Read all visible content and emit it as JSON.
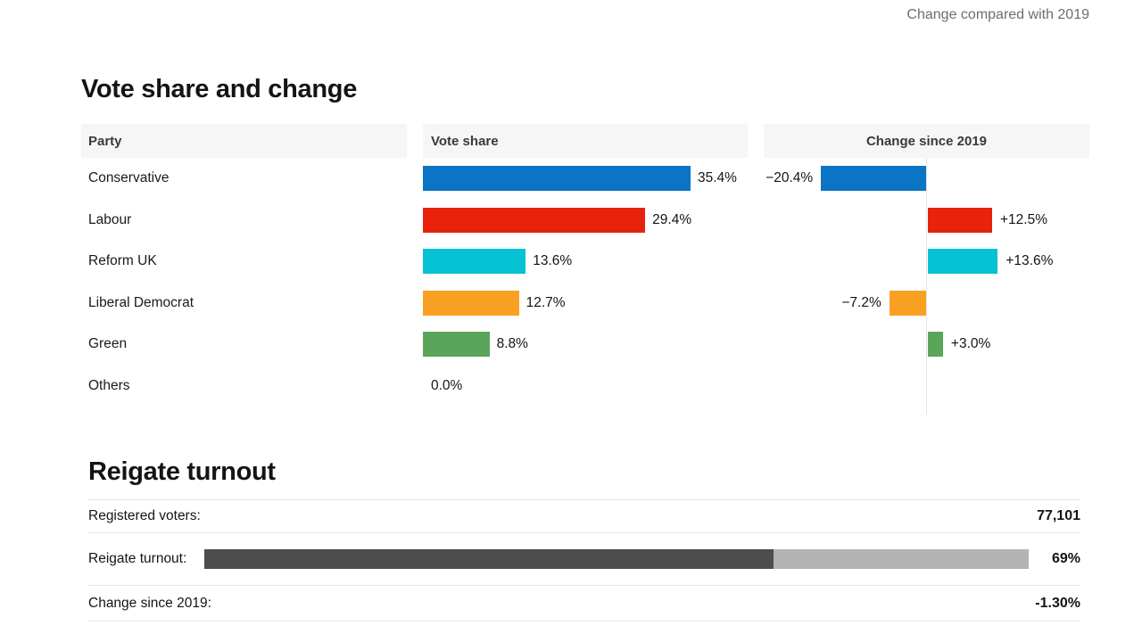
{
  "header": {
    "change_note": "Change compared with 2019"
  },
  "vote_share_section": {
    "title": "Vote share and change",
    "columns": {
      "party": "Party",
      "vote_share": "Vote share",
      "change": "Change since 2019"
    },
    "rows": [
      {
        "party": "Conservative",
        "vote_share": 35.4,
        "vote_share_label": "35.4%",
        "change": -20.4,
        "change_label": "−20.4%",
        "color": "#0b74c4"
      },
      {
        "party": "Labour",
        "vote_share": 29.4,
        "vote_share_label": "29.4%",
        "change": 12.5,
        "change_label": "+12.5%",
        "color": "#e8230d"
      },
      {
        "party": "Reform UK",
        "vote_share": 13.6,
        "vote_share_label": "13.6%",
        "change": 13.6,
        "change_label": "+13.6%",
        "color": "#06c2d4"
      },
      {
        "party": "Liberal Democrat",
        "vote_share": 12.7,
        "vote_share_label": "12.7%",
        "change": -7.2,
        "change_label": "−7.2%",
        "color": "#f9a023"
      },
      {
        "party": "Green",
        "vote_share": 8.8,
        "vote_share_label": "8.8%",
        "change": 3.0,
        "change_label": "+3.0%",
        "color": "#5ba55b"
      },
      {
        "party": "Others",
        "vote_share": 0.0,
        "vote_share_label": "0.0%",
        "change": null,
        "change_label": "",
        "color": "#808080"
      }
    ]
  },
  "turnout_section": {
    "title": "Reigate turnout",
    "registered_voters_label": "Registered voters:",
    "registered_voters_value": "77,101",
    "turnout_label": "Reigate turnout:",
    "turnout_value": "69%",
    "turnout_pct": 69,
    "change_label": "Change since 2019:",
    "change_value": "-1.30%",
    "bar_fill_color": "#4d4d4d",
    "bar_bg_color": "#b3b3b3"
  },
  "chart_data": [
    {
      "type": "bar",
      "orientation": "horizontal",
      "title": "Vote share and change",
      "categories": [
        "Conservative",
        "Labour",
        "Reform UK",
        "Liberal Democrat",
        "Green",
        "Others"
      ],
      "series": [
        {
          "name": "Vote share",
          "unit": "%",
          "values": [
            35.4,
            29.4,
            13.6,
            12.7,
            8.8,
            0.0
          ]
        },
        {
          "name": "Change since 2019",
          "unit": "percentage points",
          "values": [
            -20.4,
            12.5,
            13.6,
            -7.2,
            3.0,
            null
          ]
        }
      ],
      "colors": [
        "#0b74c4",
        "#e8230d",
        "#06c2d4",
        "#f9a023",
        "#5ba55b",
        "#808080"
      ],
      "annotation": "Change compared with 2019",
      "legend_position": "none",
      "grid": false
    },
    {
      "type": "bar",
      "title": "Reigate turnout",
      "items": [
        {
          "label": "Registered voters:",
          "value": "77,101"
        },
        {
          "label": "Reigate turnout:",
          "value": "69%",
          "numeric": 69,
          "range": [
            0,
            100
          ]
        },
        {
          "label": "Change since 2019:",
          "value": "-1.30%"
        }
      ]
    }
  ]
}
